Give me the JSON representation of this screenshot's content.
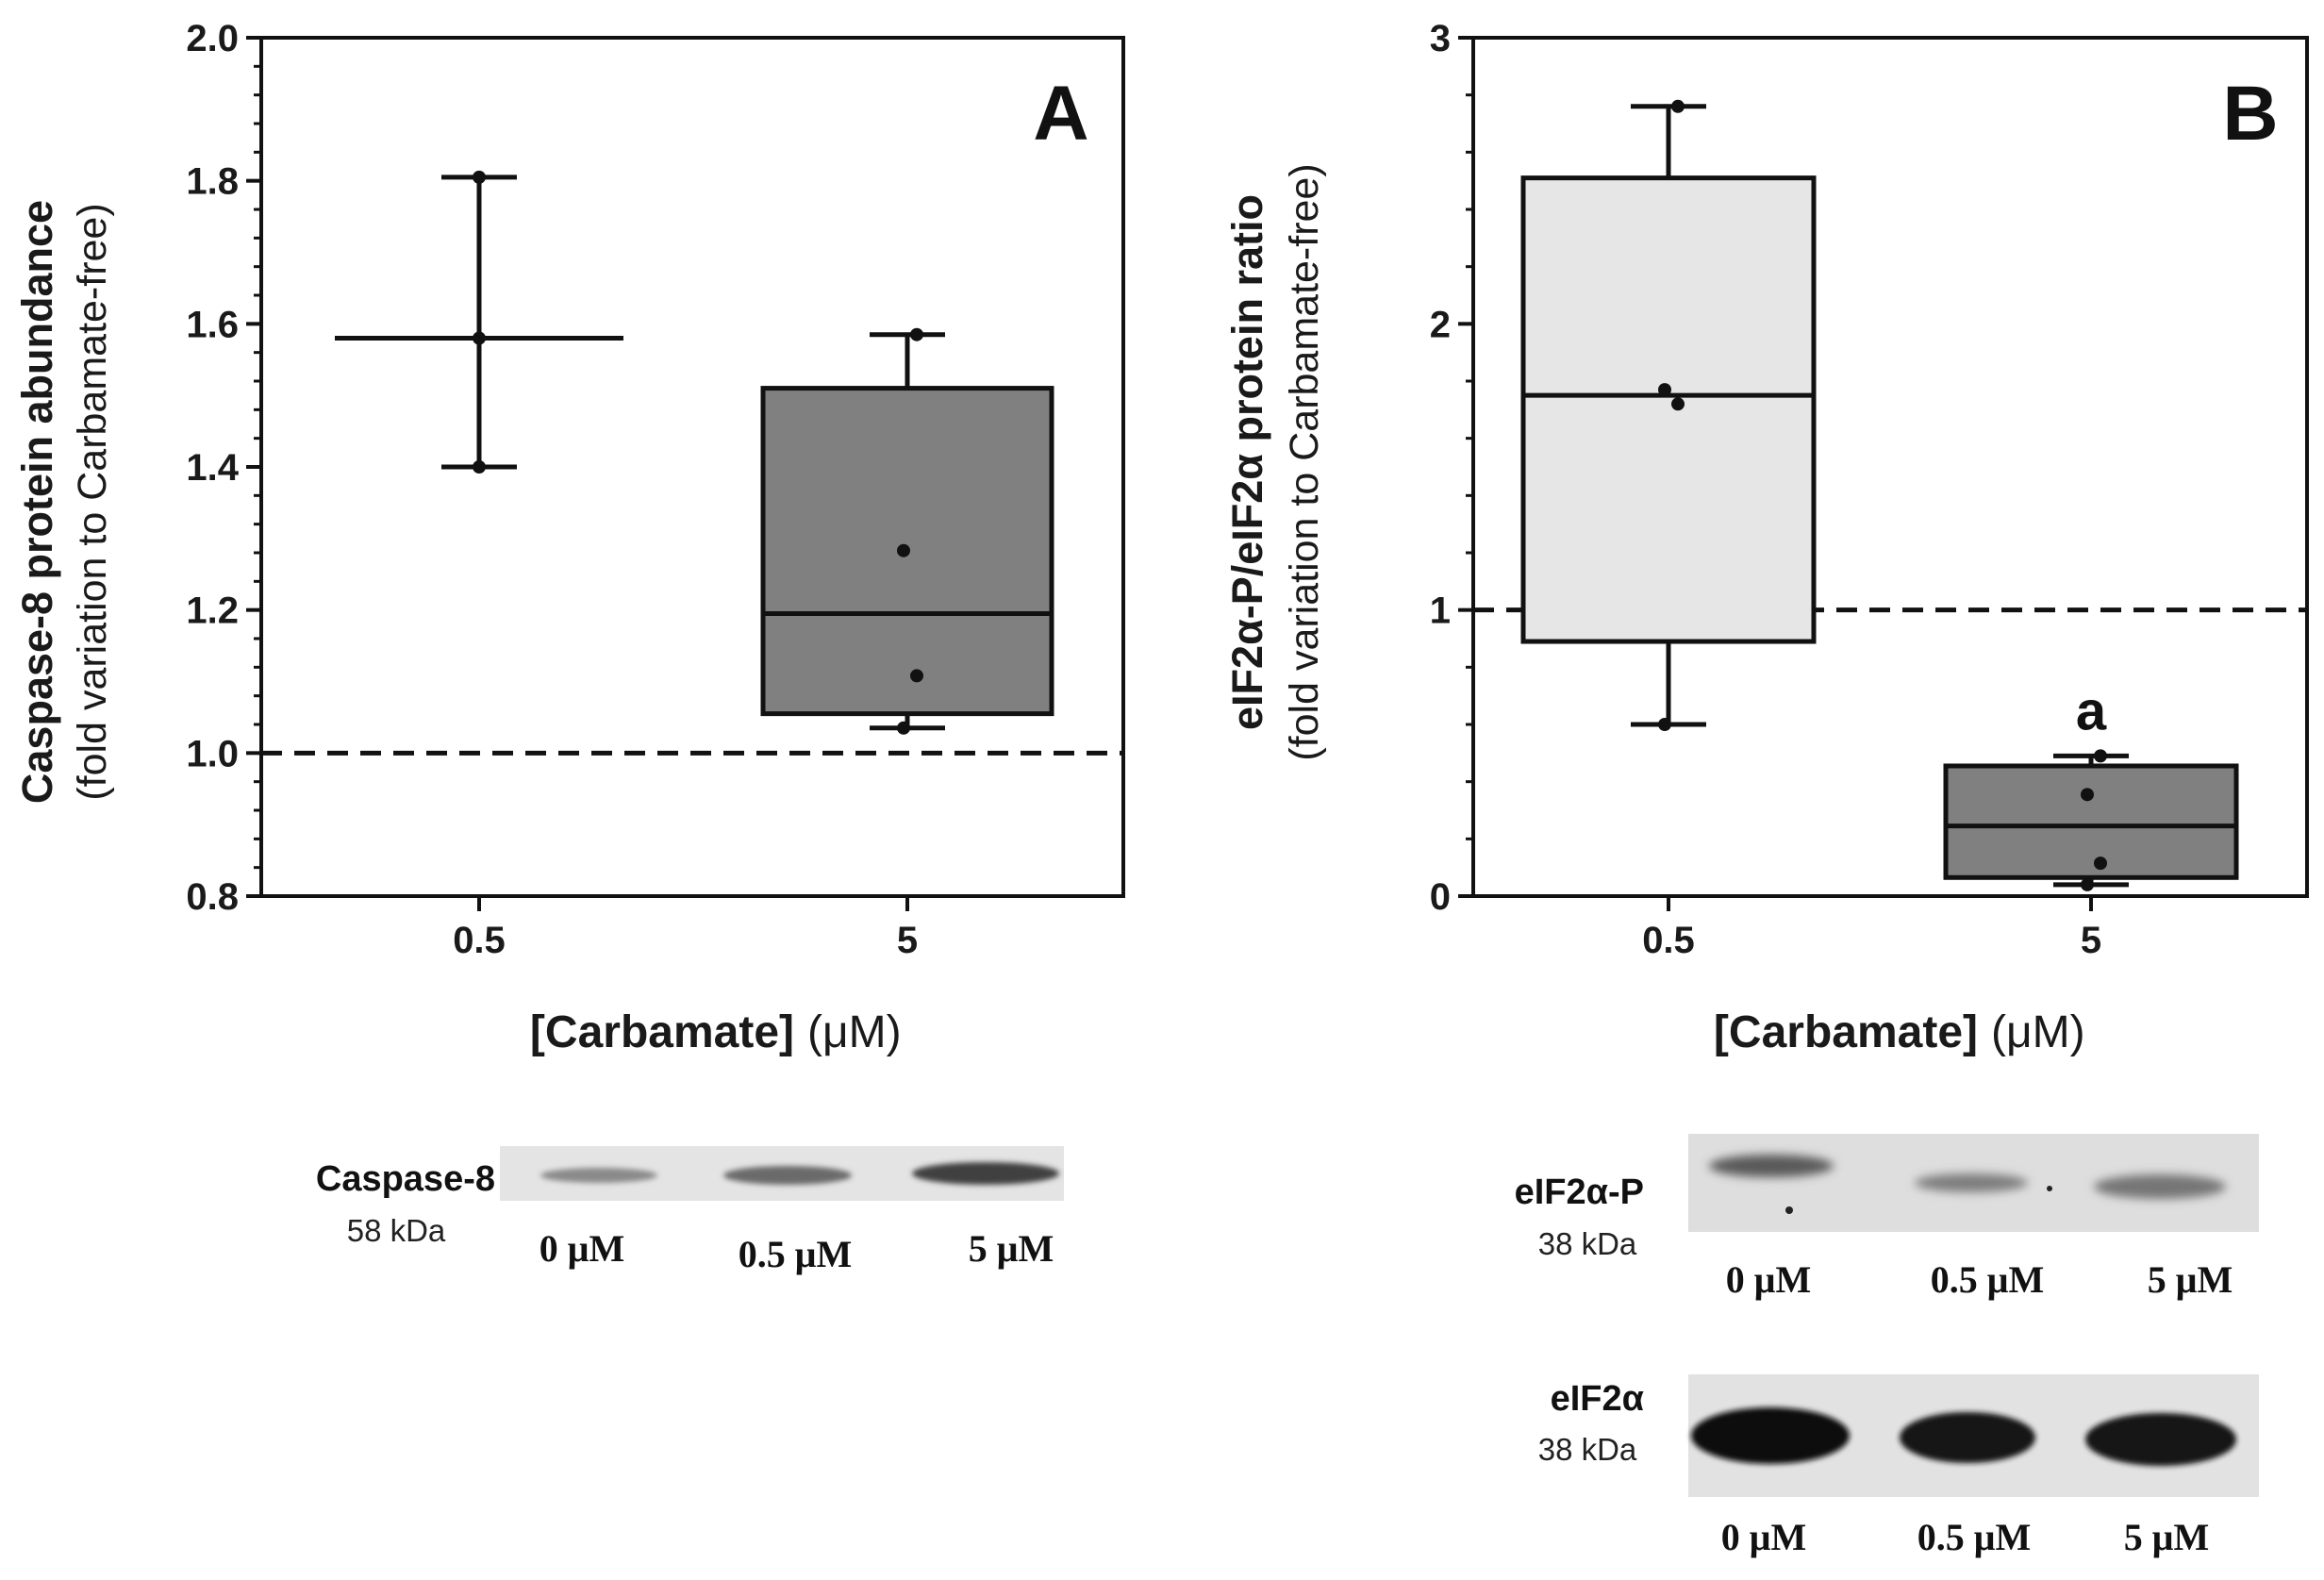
{
  "chart_data": [
    {
      "type": "box",
      "panel": "A",
      "ylabel": "Caspase-8 protein abundance",
      "ylabel_sub": "(fold variation to Carbamate-free)",
      "xlabel": "[Carbamate]",
      "xlabel_unit": "(μM)",
      "categories": [
        "0.5",
        "5"
      ],
      "ylim": [
        0.8,
        2.0
      ],
      "yticks": [
        "0.8",
        "1.0",
        "1.2",
        "1.4",
        "1.6",
        "1.8",
        "2.0"
      ],
      "reference_line": 1.0,
      "boxes": [
        {
          "category": "0.5",
          "min": 1.4,
          "q1": 1.58,
          "median": 1.58,
          "q3": 1.58,
          "max": 1.805,
          "points": [
            1.4,
            1.58,
            1.805
          ],
          "fill": "#ffffff"
        },
        {
          "category": "5",
          "min": 1.035,
          "q1": 1.055,
          "median": 1.195,
          "q3": 1.51,
          "max": 1.585,
          "points": [
            1.035,
            1.108,
            1.283,
            1.585
          ],
          "fill": "#808080"
        }
      ]
    },
    {
      "type": "box",
      "panel": "B",
      "ylabel": "eIF2α-P/eIF2α protein ratio",
      "ylabel_sub": "(fold variation to Carbamate-free)",
      "xlabel": "[Carbamate]",
      "xlabel_unit": "(μM)",
      "categories": [
        "0.5",
        "5"
      ],
      "ylim": [
        0,
        3
      ],
      "yticks": [
        "0",
        "1",
        "2",
        "3"
      ],
      "reference_line": 1.0,
      "significance": {
        "category": "5",
        "label": "a"
      },
      "boxes": [
        {
          "category": "0.5",
          "min": 0.6,
          "q1": 0.89,
          "median": 1.75,
          "q3": 2.51,
          "max": 2.76,
          "points": [
            0.6,
            1.72,
            1.77,
            2.76
          ],
          "fill": "#e6e6e6"
        },
        {
          "category": "5",
          "min": 0.04,
          "q1": 0.065,
          "median": 0.245,
          "q3": 0.455,
          "max": 0.49,
          "points": [
            0.04,
            0.115,
            0.355,
            0.49
          ],
          "fill": "#808080"
        }
      ]
    }
  ],
  "blots": {
    "caspase8": {
      "name": "Caspase-8",
      "kda": "58 kDa",
      "lanes": [
        "0 μM",
        "0.5 μM",
        "5 μM"
      ]
    },
    "eif2ap": {
      "name": "eIF2α-P",
      "kda": "38 kDa",
      "lanes": [
        "0 μM",
        "0.5 μM",
        "5 μM"
      ]
    },
    "eif2a": {
      "name": "eIF2α",
      "kda": "38 kDa",
      "lanes": [
        "0 μM",
        "0.5 μM",
        "5 μM"
      ]
    }
  }
}
